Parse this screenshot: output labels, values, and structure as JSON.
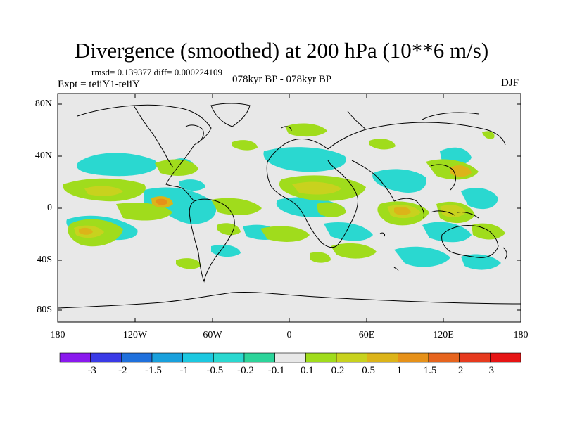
{
  "plot": {
    "title": "Divergence (smoothed) at 200 hPa (10**6 m/s)",
    "stats": "rmsd= 0.139377 diff= 0.000224109",
    "expt": "Expt = teiiY1-teiiY",
    "period": "078kyr BP - 078kyr BP",
    "season": "DJF"
  },
  "axes": {
    "lat_labels": [
      "80N",
      "40N",
      "0",
      "40S",
      "80S"
    ],
    "lon_labels": [
      "180",
      "120W",
      "60W",
      "0",
      "60E",
      "120E",
      "180"
    ]
  },
  "colorbar": {
    "labels": [
      "-3",
      "-2",
      "-1.5",
      "-1",
      "-0.5",
      "-0.2",
      "-0.1",
      "0.1",
      "0.2",
      "0.5",
      "1",
      "1.5",
      "2",
      "3"
    ],
    "colors": [
      "#8a19ee",
      "#3a3ae6",
      "#1f70dc",
      "#19a0dc",
      "#1cc8e0",
      "#2ad8d0",
      "#2cd49a",
      "#e8e8e8",
      "#a0dc1c",
      "#c8d21e",
      "#dcb419",
      "#e69119",
      "#e6641e",
      "#e63a1e",
      "#e61414"
    ]
  },
  "colors": {
    "background": "#e8e8e8",
    "coast": "#000000"
  }
}
